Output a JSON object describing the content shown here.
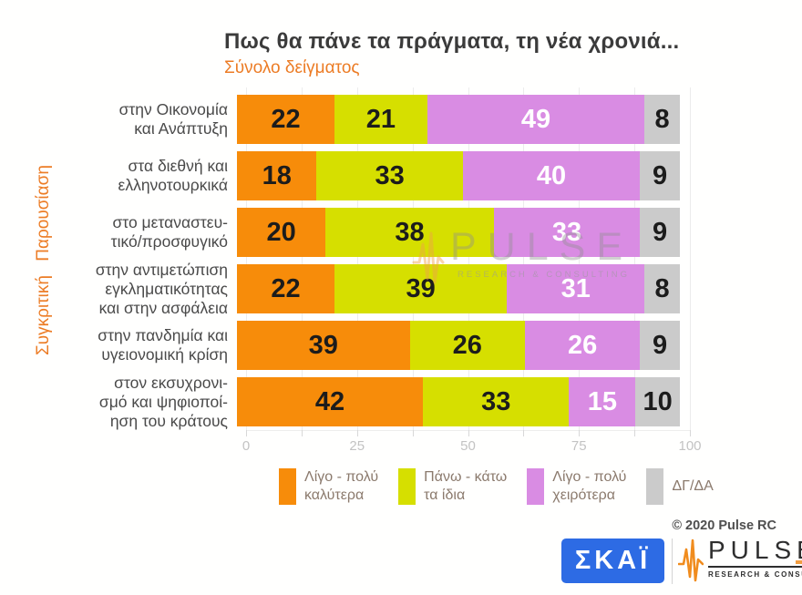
{
  "header": {
    "title": "Πως θα πάνε τα πράγματα, τη νέα χρονιά...",
    "subtitle": "Σύνολο δείγματος",
    "side_label": "Συγκριτική Παρουσίαση"
  },
  "chart_data": {
    "type": "bar",
    "orientation": "horizontal",
    "stacked": true,
    "unit": "percent",
    "xlim": [
      0,
      100
    ],
    "x_ticks": [
      0,
      25,
      50,
      75,
      100
    ],
    "minor_tick_step": 12.5,
    "grid": true,
    "legend_position": "bottom",
    "categories": [
      "στην Οικονομία και Ανάπτυξη",
      "στα διεθνή και ελληνοτουρκικά",
      "στο μεταναστευτικό/προσφυγικό",
      "στην αντιμετώπιση εγκληματικότητας και στην ασφάλεια",
      "στην πανδημία και υγειονομική κρίση",
      "στον εκσυχρονισμό και ψηφιοποίηση του κράτους"
    ],
    "category_lines": [
      [
        "στην Οικονομία",
        "και Ανάπτυξη"
      ],
      [
        "στα διεθνή και",
        "ελληνοτουρκικά"
      ],
      [
        "στο μεταναστευ-",
        "τικό/προσφυγικό"
      ],
      [
        "στην αντιμετώπιση",
        "εγκληματικότητας",
        "και στην ασφάλεια"
      ],
      [
        "στην πανδημία και",
        "υγειονομική κρίση"
      ],
      [
        "στον εκσυχρονι-",
        "σμό και ψηφιοποί-",
        "ηση του κράτους"
      ]
    ],
    "series": [
      {
        "name": "Λίγο - πολύ καλύτερα",
        "color": "#F78C0A",
        "value_color": "#1c1c1c",
        "values": [
          22,
          18,
          20,
          22,
          39,
          42
        ]
      },
      {
        "name": "Πάνω - κάτω τα ίδια",
        "color": "#D6DF00",
        "value_color": "#1c1c1c",
        "values": [
          21,
          33,
          38,
          39,
          26,
          33
        ]
      },
      {
        "name": "Λίγο - πολύ χειρότερα",
        "color": "#D98CE3",
        "value_color": "#ffffff",
        "values": [
          49,
          40,
          33,
          31,
          26,
          15
        ]
      },
      {
        "name": "ΔΓ/ΔΑ",
        "color": "#CBCBCB",
        "value_color": "#1c1c1c",
        "values": [
          8,
          9,
          9,
          8,
          9,
          10
        ]
      }
    ]
  },
  "legend": {
    "items": [
      {
        "lines": [
          "Λίγο - πολύ",
          "καλύτερα"
        ],
        "color": "#F78C0A"
      },
      {
        "lines": [
          "Πάνω - κάτω",
          "τα ίδια"
        ],
        "color": "#D6DF00"
      },
      {
        "lines": [
          "Λίγο - πολύ",
          "χειρότερα"
        ],
        "color": "#D98CE3"
      },
      {
        "lines": [
          "ΔΓ/ΔΑ"
        ],
        "color": "#CBCBCB"
      }
    ]
  },
  "watermark": {
    "brand": "PULSE",
    "tagline": "RESEARCH & CONSULTING"
  },
  "footer": {
    "copyright": "© 2020 Pulse RC",
    "skai_logo_text": "ΣΚΑΪ",
    "pulse_logo_text": "PULSE",
    "pulse_logo_tagline": "RESEARCH & CONSULTING"
  },
  "colors": {
    "accent_orange": "#EC7C25",
    "skai_blue": "#2D6BE4",
    "pulse_wave_orange": "#F08C1E",
    "axis_label": "#C3C3C3",
    "title_text": "#3B3B3B",
    "category_text": "#4A4A4A",
    "legend_text": "#8B7A6D"
  }
}
